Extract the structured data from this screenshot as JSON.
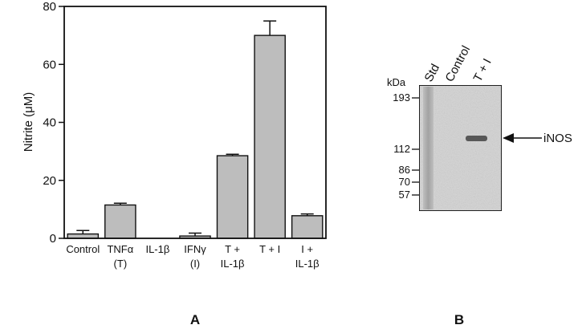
{
  "chart_data": [
    {
      "type": "bar",
      "panel_label": "A",
      "ylabel": "Nitrite (μM)",
      "ylim": [
        0,
        80
      ],
      "yticks": [
        0,
        20,
        40,
        60,
        80
      ],
      "categories": [
        [
          "Control"
        ],
        [
          "TNFα",
          "(T)"
        ],
        [
          "IL-1β"
        ],
        [
          "IFNγ",
          "(I)"
        ],
        [
          "T +",
          "IL-1β"
        ],
        [
          "T + I"
        ],
        [
          "I +",
          "IL-1β"
        ]
      ],
      "values": [
        1.5,
        11.5,
        0,
        0.8,
        28.5,
        70,
        7.8
      ],
      "errors": [
        1.2,
        0.6,
        0,
        1.0,
        0.5,
        5,
        0.6
      ],
      "bar_color": "#bdbdbd"
    },
    {
      "type": "blot",
      "panel_label": "B",
      "unit_label": "kDa",
      "lanes": [
        "Std",
        "Control",
        "T + I"
      ],
      "markers": [
        "193",
        "112",
        "86",
        "70",
        "57"
      ],
      "band_label": "iNOS"
    }
  ]
}
